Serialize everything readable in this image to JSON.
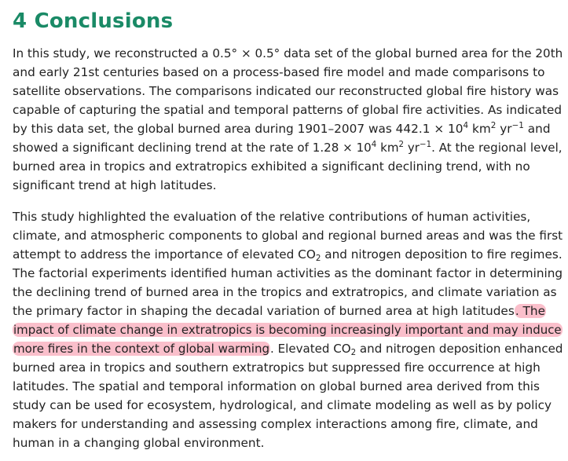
{
  "section": {
    "number": "4",
    "title": "Conclusions"
  },
  "paragraph1": {
    "lines": [
      [
        "In this study, we reconstructed a 0.5° × 0.5° data set of the global burned area for the 20th"
      ],
      [
        "and early 21st centuries based on a process-based fire model and made comparisons to"
      ],
      [
        "satellite observations. The comparisons indicated our reconstructed global fire history was"
      ],
      [
        "capable of capturing the spatial and temporal patterns of global fire activities. As indicated"
      ],
      [
        "by this data set, the global burned area during 1901–2007 was 442.1 × 10",
        "4",
        " km",
        "2",
        " yr",
        "−1",
        " and"
      ],
      [
        "showed a significant declining trend at the rate of 1.28 × 10",
        "4",
        " km",
        "2",
        " yr",
        "−1",
        ". At the regional level,"
      ],
      [
        "burned area in tropics and extratropics exhibited a significant declining trend, with no"
      ],
      [
        "significant trend at high latitudes."
      ]
    ]
  },
  "paragraph2": {
    "lines": [
      [
        "This study highlighted the evaluation of the relative contributions of human activities,"
      ],
      [
        "climate, and atmospheric components to global and regional burned areas and was the first"
      ],
      [
        "attempt to address the importance of elevated CO",
        "2",
        " and nitrogen deposition to fire regimes."
      ],
      [
        "The factorial experiments identified human activities as the dominant factor in determining"
      ],
      [
        "the declining trend of burned area in the tropics and extratropics, and climate variation as"
      ],
      [
        "the primary factor in shaping the decadal variation of burned area at high latitudes",
        ". The"
      ],
      [
        "impact of climate change in extratropics is becoming increasingly important and may induce"
      ],
      [
        "more fires in the context of global warming",
        ". Elevated CO",
        "2",
        " and nitrogen deposition enhanced"
      ],
      [
        "burned area in tropics and southern extratropics but suppressed fire occurrence at high"
      ],
      [
        "latitudes. The spatial and temporal information on global burned area derived from this"
      ],
      [
        "study can be used for ecosystem, hydrological, and climate modeling as well as by policy"
      ],
      [
        "makers for understanding and assessing complex interactions among fire, climate, and"
      ],
      [
        "human in a changing global environment."
      ]
    ]
  },
  "colors": {
    "heading": "#1a8a66",
    "body_text": "#222222",
    "highlight": "#f68aa0"
  }
}
